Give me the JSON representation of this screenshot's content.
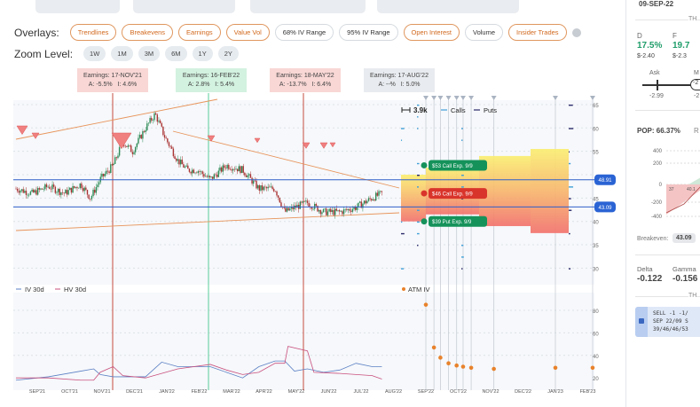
{
  "overlays": {
    "label": "Overlays:",
    "items": [
      {
        "label": "Trendlines",
        "on": true
      },
      {
        "label": "Breakevens",
        "on": true
      },
      {
        "label": "Earnings",
        "on": true
      },
      {
        "label": "Value Vol",
        "on": true
      },
      {
        "label": "68% IV Range",
        "on": false
      },
      {
        "label": "95% IV Range",
        "on": false
      },
      {
        "label": "Open Interest",
        "on": true
      },
      {
        "label": "Volume",
        "on": false
      },
      {
        "label": "Insider Trades",
        "on": true
      }
    ]
  },
  "zoom": {
    "label": "Zoom Level:",
    "items": [
      "1W",
      "1M",
      "3M",
      "6M",
      "1Y",
      "2Y"
    ]
  },
  "earnings": [
    {
      "title": "Earnings: 17-NOV'21",
      "detail": "A: -5.5%   I: 4.6%",
      "color": "#f8d7d5"
    },
    {
      "title": "Earnings: 16-FEB'22",
      "detail": "A: 2.8%   I: 5.4%",
      "color": "#d3f2e0"
    },
    {
      "title": "Earnings: 18-MAY'22",
      "detail": "A: -13.7%   I: 6.4%",
      "color": "#f8d7d5"
    },
    {
      "title": "Earnings: 17-AUG'22",
      "detail": "A: --%   I: 5.0%",
      "color": "#e8ebef"
    }
  ],
  "legend": {
    "size": "3.9k",
    "calls": "Calls",
    "puts": "Puts"
  },
  "legs": [
    {
      "label": "$53 Call Exp. 9/9",
      "color": "#15925a"
    },
    {
      "label": "$46 Call Exp. 9/9",
      "color": "#d9342b"
    },
    {
      "label": "$39 Put Exp. 9/9",
      "color": "#15925a"
    }
  ],
  "breakevens": [
    "48.91",
    "43.09"
  ],
  "price_axis": [
    "65",
    "60",
    "55",
    "45",
    "40",
    "35",
    "30"
  ],
  "iv_legend": {
    "iv": "IV 30d",
    "hv": "HV 30d",
    "atm": "ATM IV"
  },
  "iv_axis": [
    "80",
    "60",
    "40",
    "20"
  ],
  "months": [
    "SEP'21",
    "OCT'21",
    "NOV'21",
    "DEC'21",
    "JAN'22",
    "FEB'22",
    "MAR'22",
    "APR'22",
    "MAY'22",
    "JUN'22",
    "JUL'22",
    "AUG'22",
    "SEP'22",
    "OCT'22",
    "NOV'22",
    "DEC'22",
    "JAN'23",
    "FEB'23"
  ],
  "chart_data": {
    "type": "line",
    "price_keypoints": [
      [
        0,
        47
      ],
      [
        0.5,
        46
      ],
      [
        1,
        47.5
      ],
      [
        1.5,
        46
      ],
      [
        2,
        48
      ],
      [
        2.3,
        45
      ],
      [
        2.6,
        49
      ],
      [
        3,
        52
      ],
      [
        3.3,
        57
      ],
      [
        3.6,
        55
      ],
      [
        4,
        60
      ],
      [
        4.3,
        63
      ],
      [
        4.6,
        58
      ],
      [
        5,
        53
      ],
      [
        5.3,
        51
      ],
      [
        5.6,
        51
      ],
      [
        6,
        49
      ],
      [
        6.5,
        52
      ],
      [
        7,
        51
      ],
      [
        7.5,
        47
      ],
      [
        8,
        47
      ],
      [
        8.3,
        42
      ],
      [
        8.6,
        43
      ],
      [
        9,
        44
      ],
      [
        9.5,
        42
      ],
      [
        10,
        42
      ],
      [
        10.5,
        43
      ],
      [
        11,
        45
      ],
      [
        11.3,
        46
      ]
    ],
    "atm_iv": [
      [
        12.0,
        85
      ],
      [
        12.25,
        47
      ],
      [
        12.45,
        38
      ],
      [
        12.7,
        33
      ],
      [
        12.95,
        31
      ],
      [
        13.15,
        30
      ],
      [
        13.4,
        29
      ],
      [
        14.1,
        28
      ],
      [
        16.0,
        29
      ],
      [
        17.15,
        29
      ]
    ],
    "iv30": [
      [
        0,
        18
      ],
      [
        1,
        21
      ],
      [
        2,
        26
      ],
      [
        2.4,
        28
      ],
      [
        2.6,
        23
      ],
      [
        3,
        21
      ],
      [
        4,
        21
      ],
      [
        4.5,
        34
      ],
      [
        5,
        30
      ],
      [
        6,
        30
      ],
      [
        6.5,
        25
      ],
      [
        7,
        20
      ],
      [
        7.5,
        30
      ],
      [
        8,
        35
      ],
      [
        8.3,
        35
      ],
      [
        8.6,
        26
      ],
      [
        9,
        28
      ],
      [
        9.5,
        25
      ],
      [
        10,
        27
      ],
      [
        10.5,
        33
      ],
      [
        11,
        30
      ],
      [
        11.3,
        30
      ]
    ],
    "hv30": [
      [
        0,
        20
      ],
      [
        1,
        20
      ],
      [
        2,
        18
      ],
      [
        2.4,
        18
      ],
      [
        2.6,
        25
      ],
      [
        3,
        30
      ],
      [
        3.3,
        22
      ],
      [
        4,
        20
      ],
      [
        4.5,
        24
      ],
      [
        5,
        28
      ],
      [
        6,
        32
      ],
      [
        6.5,
        27
      ],
      [
        7,
        23
      ],
      [
        7.5,
        25
      ],
      [
        8,
        33
      ],
      [
        8.3,
        33
      ],
      [
        8.4,
        48
      ],
      [
        9,
        44
      ],
      [
        9.2,
        25
      ],
      [
        10,
        24
      ],
      [
        11,
        22
      ],
      [
        11.3,
        19
      ]
    ]
  },
  "right": {
    "date": "09-SEP-22",
    "section1": "TH",
    "d_label": "D",
    "f_label": "F",
    "d_val": "17.5%",
    "f_val": "19.7",
    "d_price": "$-2.40",
    "f_price": "$-2.3",
    "ask": "Ask",
    "mid": "M",
    "ask_val": "-2.99",
    "mid_val": "-2",
    "mid_pill": "-2",
    "pop": "POP: 66.37%",
    "r": "R",
    "pl_axis": [
      "400",
      "200",
      "0",
      "-200",
      "-400"
    ],
    "pl_marks": [
      "37",
      "40.1"
    ],
    "breakeven_label": "Breakeven:",
    "breakeven_val": "43.09",
    "delta_label": "Delta",
    "gamma_label": "Gamma",
    "delta": "-0.122",
    "gamma": "-0.156",
    "section2": "TH",
    "order": [
      "SELL -1 -1/",
      "SEP 22/09 S",
      "39/46/46/53"
    ]
  }
}
